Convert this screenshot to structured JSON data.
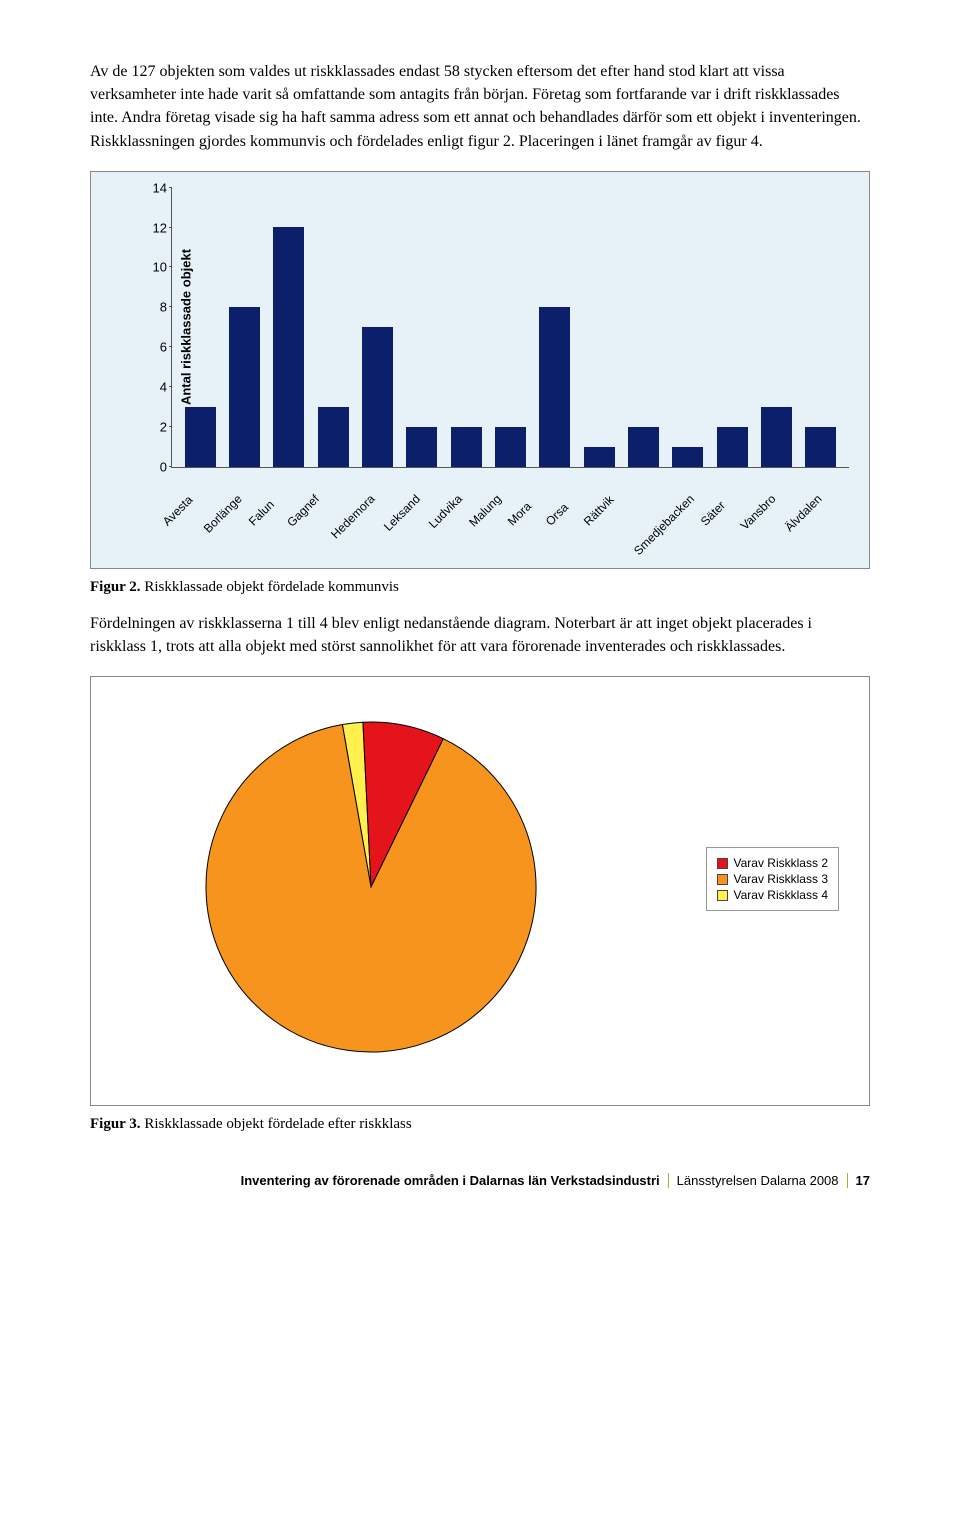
{
  "paragraphs": {
    "p1": "Av de 127 objekten som valdes ut riskklassades endast 58 stycken eftersom det efter hand stod klart att vissa verksamheter inte hade varit så omfattande som antagits från början. Företag som fortfarande var i drift riskklassades inte. Andra företag visade sig ha haft samma adress som ett annat och behandlades därför som ett objekt i inventeringen. Riskklassningen gjordes kommunvis och fördelades enligt figur 2. Placeringen i länet framgår av figur 4.",
    "p2": "Fördelningen av riskklasserna 1 till 4 blev enligt nedanstående diagram. Noterbart är att inget objekt placerades i riskklass 1, trots att alla objekt med störst sannolikhet för att vara förorenade inventerades och riskklassades."
  },
  "bar_chart": {
    "type": "bar",
    "background_color": "#e6f2f7",
    "bar_color": "#0b1f6b",
    "axis_color": "#555555",
    "y_label": "Antal riskklassade objekt",
    "ymax": 14,
    "ytick_step": 2,
    "yticks": [
      0,
      2,
      4,
      6,
      8,
      10,
      12,
      14
    ],
    "label_fontsize": 12,
    "categories": [
      "Avesta",
      "Borlänge",
      "Falun",
      "Gagnef",
      "Hedemora",
      "Leksand",
      "Ludvika",
      "Malung",
      "Mora",
      "Orsa",
      "Rättvik",
      "Smedjebacken",
      "Säter",
      "Vansbro",
      "Älvdalen"
    ],
    "values": [
      3,
      8,
      12,
      3,
      7,
      2,
      2,
      2,
      8,
      1,
      2,
      1,
      2,
      3,
      2
    ]
  },
  "captions": {
    "fig2_label": "Figur 2.",
    "fig2_text": " Riskklassade objekt fördelade kommunvis",
    "fig3_label": "Figur 3.",
    "fig3_text": " Riskklassade objekt fördelade efter riskklass"
  },
  "pie_chart": {
    "type": "pie",
    "background_color": "#ffffff",
    "slices": [
      {
        "label": "Varav Riskklass 2",
        "color": "#e5141b",
        "percent": 8
      },
      {
        "label": "Varav Riskklass 3",
        "color": "#f7941d",
        "percent": 90
      },
      {
        "label": "Varav Riskklass 4",
        "color": "#fff04d",
        "percent": 2
      }
    ],
    "border_color": "#000000",
    "legend_items": [
      {
        "label": "Varav Riskklass 2",
        "color": "#e5141b"
      },
      {
        "label": "Varav Riskklass 3",
        "color": "#f7941d"
      },
      {
        "label": "Varav Riskklass 4",
        "color": "#fff04d"
      }
    ]
  },
  "footer": {
    "left": "Inventering av förorenade områden i Dalarnas län Verkstadsindustri",
    "mid": "Länsstyrelsen Dalarna 2008",
    "page": "17"
  }
}
